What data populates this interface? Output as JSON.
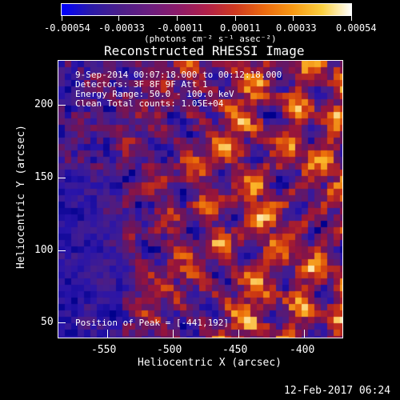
{
  "colorbar": {
    "ticks": [
      "-0.00054",
      "-0.00033",
      "-0.00011",
      "0.00011",
      "0.00033",
      "0.00054"
    ],
    "units_label": "(photons cm⁻² s⁻¹ asec⁻²)"
  },
  "plot": {
    "title": "Reconstructed RHESSI Image",
    "info_lines": [
      "9-Sep-2014 00:07:18.000 to 00:12:18.000",
      "Detectors: 3F 8F 9F  Att 1",
      "Energy Range: 50.0 - 100.0 keV",
      "Clean    Total counts: 1.05E+04"
    ],
    "peak_text": "Position of Peak = [-441,192]",
    "xlabel": "Heliocentric X (arcsec)",
    "ylabel": "Heliocentric Y (arcsec)",
    "xticks": [
      "-550",
      "-500",
      "-450",
      "-400"
    ],
    "yticks": [
      "200",
      "150",
      "100",
      "50"
    ]
  },
  "footer": {
    "timestamp": "12-Feb-2017 06:24"
  },
  "colors": {
    "background": "#000000",
    "axis": "#ffffff",
    "colormap": [
      "#0000ff",
      "#4b1f8a",
      "#8c1b6a",
      "#d03a20",
      "#f89a14",
      "#ffffff"
    ]
  }
}
